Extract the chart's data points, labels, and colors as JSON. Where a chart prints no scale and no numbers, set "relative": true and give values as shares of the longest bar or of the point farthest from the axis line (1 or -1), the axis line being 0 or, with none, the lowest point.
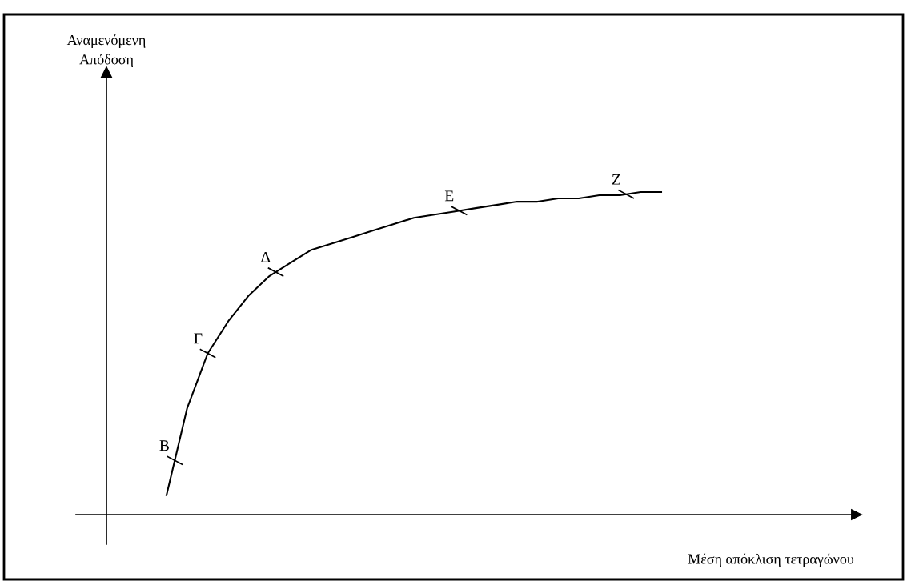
{
  "chart_data": {
    "type": "line",
    "relative": true,
    "color": "#000000",
    "categories": [
      null,
      null,
      null,
      null,
      null,
      null,
      null,
      null,
      null,
      null,
      null,
      null,
      null,
      null,
      null,
      null,
      null,
      null,
      null,
      null,
      null,
      null,
      null,
      null,
      null
    ],
    "values": [
      0.06,
      0.33,
      0.5,
      0.6,
      0.68,
      0.74,
      0.78,
      0.82,
      0.84,
      0.86,
      0.88,
      0.9,
      0.92,
      0.93,
      0.94,
      0.95,
      0.96,
      0.97,
      0.97,
      0.98,
      0.98,
      0.99,
      0.99,
      1.0,
      1.0
    ],
    "annotations": [
      "Αναμενόμενη\nΑπόδοση",
      "Μέση απόκλιση τετραγώνου",
      "B",
      "Γ",
      "Δ",
      "E",
      "Z"
    ]
  }
}
